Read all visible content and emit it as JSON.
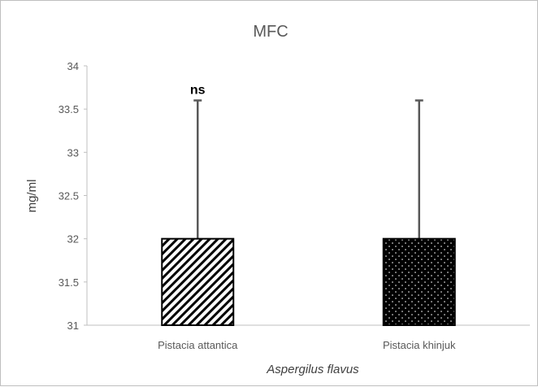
{
  "chart_data": {
    "type": "bar",
    "title": "MFC",
    "xlabel": "Aspergilus flavus",
    "ylabel": "mg/ml",
    "ylim": [
      31,
      34
    ],
    "yticks": [
      31,
      31.5,
      32,
      32.5,
      33,
      33.5,
      34
    ],
    "categories": [
      "Pistacia attantica",
      "Pistacia khinjuk"
    ],
    "values": [
      32,
      32
    ],
    "error_upper": [
      33.6,
      33.6
    ],
    "patterns": [
      "diagonal-stripes",
      "dotted-black"
    ],
    "annotations": [
      {
        "category": "Pistacia attantica",
        "text": "ns"
      }
    ],
    "grid": false,
    "legend": "none"
  },
  "colors": {
    "bar_outline": "#000000",
    "error_bar": "#595959",
    "axis": "#bfbfbf",
    "text": "#595959"
  }
}
